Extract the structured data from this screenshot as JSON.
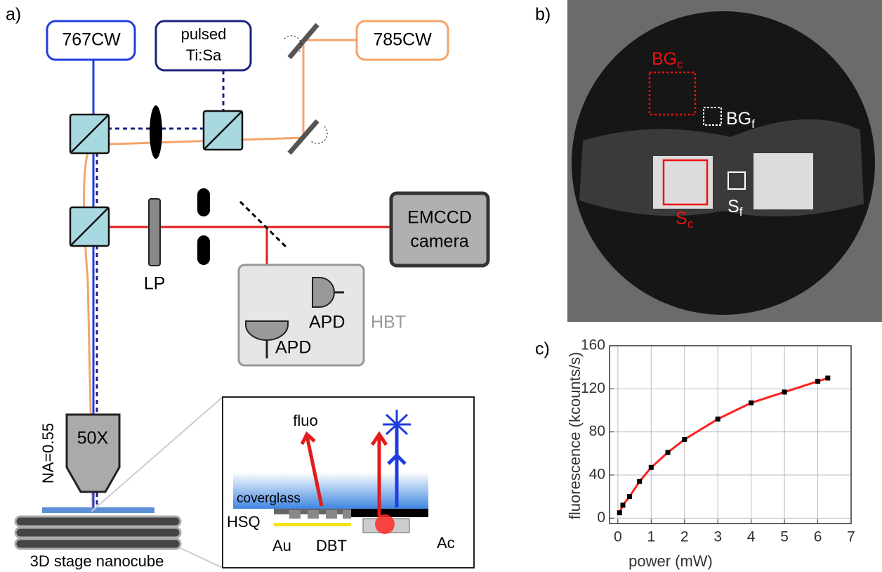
{
  "panels": {
    "a": "a)",
    "b": "b)",
    "c": "c)"
  },
  "diagram": {
    "laser_767": "767CW",
    "laser_pulsed": [
      "pulsed",
      "Ti:Sa"
    ],
    "laser_785": "785CW",
    "camera": [
      "EMCCD",
      "camera"
    ],
    "filter": "LP",
    "hbt": "HBT",
    "apd_1": "APD",
    "apd_2": "APD",
    "na": "NA=0.55",
    "objective": "50X",
    "stage": "3D stage nanocube",
    "inset": {
      "fluo": "fluo",
      "coverglass": "coverglass",
      "hsq": "HSQ",
      "au": "Au",
      "dbt": "DBT",
      "ac": "Ac"
    }
  },
  "image": {
    "bg_c": {
      "main": "BG",
      "sub": "c"
    },
    "bg_f": {
      "main": "BG",
      "sub": "f"
    },
    "s_c": {
      "main": "S",
      "sub": "c"
    },
    "s_f": {
      "main": "S",
      "sub": "f"
    }
  },
  "chart_data": {
    "type": "scatter",
    "x_label": "power (mW)",
    "y_label": "fluorescence (kcounts/s)",
    "x": [
      0.05,
      0.15,
      0.35,
      0.65,
      1,
      1.5,
      2,
      3,
      4,
      5,
      6,
      6.3
    ],
    "values": [
      5,
      12,
      20,
      34,
      47,
      61,
      73,
      92,
      107,
      117,
      127,
      130
    ],
    "marker_color": "#000000",
    "line_color": "#ff2020",
    "xlim": [
      -0.25,
      7
    ],
    "ylim": [
      -5,
      160
    ],
    "xticks": [
      0,
      1,
      2,
      3,
      4,
      5,
      6,
      7
    ],
    "yticks": [
      0,
      40,
      80,
      120,
      160
    ],
    "grid": true
  }
}
